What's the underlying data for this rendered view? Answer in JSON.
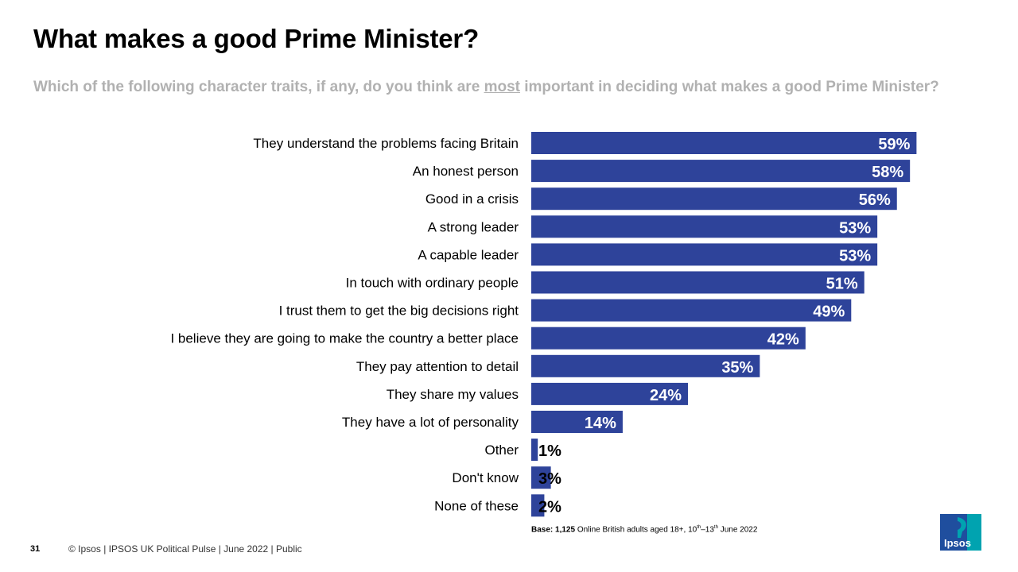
{
  "slide": {
    "title": "What makes a good Prime Minister?",
    "question_pre": "Which of the following  character traits, if any, do you think are ",
    "question_emph": "most",
    "question_post": " important in deciding what makes a good Prime Minister?",
    "base_label": "Base: 1,125",
    "base_text_a": " Online British adults aged 18+, 10",
    "base_sup_a": "th",
    "base_text_b": "–13",
    "base_sup_b": "th",
    "base_text_c": " June 2022",
    "page_number": "31",
    "footer": "© Ipsos |  IPSOS UK Political Pulse | June  2022 | Public",
    "logo_text": "Ipsos"
  },
  "colors": {
    "bar": "#2e439a",
    "label_inside": "#ffffff",
    "label_outside": "#000000",
    "logo_bg": "#00a3b0",
    "logo_box": "#1f4e9e"
  },
  "chart_data": {
    "type": "bar",
    "orientation": "horizontal",
    "categories": [
      "They understand the problems facing Britain",
      "An honest person",
      "Good in a crisis",
      "A strong leader",
      "A capable leader",
      "In touch with ordinary people",
      "I trust them to get the big decisions right",
      "I believe they are going to make the country a better place",
      "They pay attention to detail ",
      "They share my values",
      "They have a lot of personality",
      "Other",
      "Don't know",
      "None of these"
    ],
    "values": [
      59,
      58,
      56,
      53,
      53,
      51,
      49,
      42,
      35,
      24,
      14,
      1,
      3,
      2
    ],
    "value_labels": [
      "59%",
      "58%",
      "56%",
      "53%",
      "53%",
      "51%",
      "49%",
      "42%",
      "35%",
      "24%",
      "14%",
      "1%",
      "3%",
      "2%"
    ],
    "unit": "%",
    "xlim": [
      0,
      60
    ],
    "grid": false,
    "legend": "none"
  }
}
